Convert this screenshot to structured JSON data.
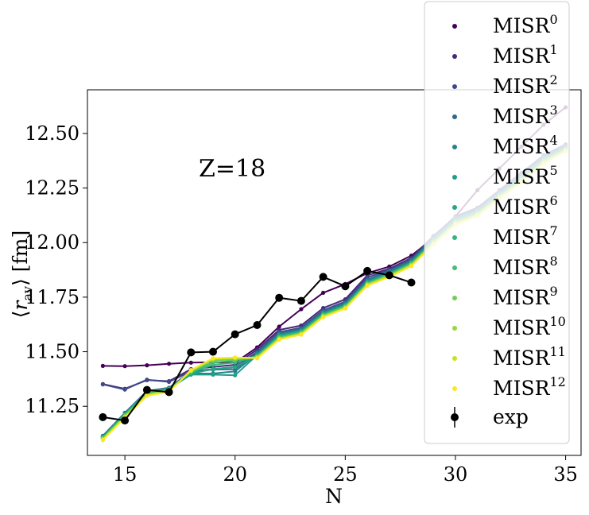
{
  "chart_data": {
    "type": "line",
    "annotation": "Z=18",
    "xlabel": "N",
    "ylabel_symbol": "r",
    "ylabel_subscript": "av",
    "ylabel_unit": "[fm]",
    "xlim": [
      13.3,
      35.7
    ],
    "ylim": [
      11.025,
      12.7
    ],
    "xticks": [
      15,
      20,
      25,
      30,
      35
    ],
    "yticks": [
      11.25,
      11.5,
      11.75,
      12.0,
      12.25,
      12.5
    ],
    "xtick_labels": [
      "15",
      "20",
      "25",
      "30",
      "35"
    ],
    "ytick_labels": [
      "11.25",
      "11.50",
      "11.75",
      "12.00",
      "12.25",
      "12.50"
    ],
    "legend_position": "upper-right",
    "x": [
      14,
      15,
      16,
      17,
      18,
      19,
      20,
      21,
      22,
      23,
      24,
      25,
      26,
      27,
      28,
      29,
      30,
      31,
      32,
      33,
      34,
      35
    ],
    "series": [
      {
        "name": "MISR",
        "sup": "0",
        "color": "#440154",
        "values": [
          11.435,
          11.434,
          11.438,
          11.445,
          11.45,
          11.452,
          11.45,
          11.52,
          11.615,
          11.695,
          11.77,
          11.81,
          11.86,
          11.89,
          11.94,
          12.02,
          12.12,
          12.24,
          12.34,
          12.44,
          12.54,
          12.62
        ]
      },
      {
        "name": "MISR",
        "sup": "1",
        "color": "#482878",
        "values": [
          11.352,
          11.33,
          11.37,
          11.365,
          11.42,
          11.43,
          11.44,
          11.51,
          11.6,
          11.62,
          11.7,
          11.74,
          11.85,
          11.88,
          11.93,
          12.03,
          12.12,
          12.16,
          12.24,
          12.32,
          12.4,
          12.45
        ]
      },
      {
        "name": "MISR",
        "sup": "2",
        "color": "#3e4989",
        "values": [
          11.35,
          11.327,
          11.372,
          11.362,
          11.41,
          11.42,
          11.43,
          11.5,
          11.59,
          11.61,
          11.69,
          11.73,
          11.84,
          11.875,
          11.925,
          12.03,
          12.115,
          12.155,
          12.235,
          12.315,
          12.395,
          12.445
        ]
      },
      {
        "name": "MISR",
        "sup": "3",
        "color": "#31688e",
        "values": [
          11.115,
          11.22,
          11.32,
          11.335,
          11.41,
          11.418,
          11.42,
          11.495,
          11.585,
          11.605,
          11.685,
          11.725,
          11.83,
          11.87,
          11.92,
          12.02,
          12.11,
          12.15,
          12.23,
          12.305,
          12.39,
          12.44
        ]
      },
      {
        "name": "MISR",
        "sup": "4",
        "color": "#26828e",
        "values": [
          11.112,
          11.218,
          11.318,
          11.332,
          11.4,
          11.4,
          11.41,
          11.49,
          11.58,
          11.6,
          11.68,
          11.72,
          11.825,
          11.865,
          11.915,
          12.015,
          12.105,
          12.145,
          12.225,
          12.3,
          12.385,
          12.435
        ]
      },
      {
        "name": "MISR",
        "sup": "5",
        "color": "#1f9e89",
        "values": [
          11.11,
          11.215,
          11.315,
          11.33,
          11.395,
          11.395,
          11.392,
          11.485,
          11.575,
          11.595,
          11.675,
          11.715,
          11.82,
          11.86,
          11.91,
          12.01,
          12.1,
          12.14,
          12.22,
          12.295,
          12.38,
          12.432
        ]
      },
      {
        "name": "MISR",
        "sup": "6",
        "color": "#22a884",
        "values": [
          11.108,
          11.212,
          11.312,
          11.328,
          11.4,
          11.42,
          11.43,
          11.482,
          11.57,
          11.592,
          11.672,
          11.712,
          11.818,
          11.858,
          11.908,
          12.008,
          12.098,
          12.138,
          12.218,
          12.292,
          12.378,
          12.43
        ]
      },
      {
        "name": "MISR",
        "sup": "7",
        "color": "#35b779",
        "values": [
          11.106,
          11.21,
          11.31,
          11.326,
          11.405,
          11.44,
          11.45,
          11.48,
          11.568,
          11.59,
          11.67,
          11.71,
          11.815,
          11.855,
          11.905,
          12.005,
          12.095,
          12.135,
          12.215,
          12.29,
          12.375,
          12.428
        ]
      },
      {
        "name": "MISR",
        "sup": "8",
        "color": "#44bf70",
        "values": [
          11.104,
          11.208,
          11.308,
          11.324,
          11.408,
          11.45,
          11.46,
          11.478,
          11.566,
          11.588,
          11.668,
          11.708,
          11.812,
          11.852,
          11.902,
          12.002,
          12.092,
          12.132,
          12.212,
          12.288,
          12.372,
          12.426
        ]
      },
      {
        "name": "MISR",
        "sup": "9",
        "color": "#6ece58",
        "values": [
          11.102,
          11.205,
          11.305,
          11.322,
          11.41,
          11.46,
          11.465,
          11.476,
          11.563,
          11.585,
          11.665,
          11.705,
          11.81,
          11.85,
          11.9,
          12.0,
          12.09,
          12.13,
          12.21,
          12.285,
          12.37,
          12.424
        ]
      },
      {
        "name": "MISR",
        "sup": "10",
        "color": "#95d840",
        "values": [
          11.1,
          11.203,
          11.303,
          11.32,
          11.412,
          11.465,
          11.47,
          11.474,
          11.56,
          11.582,
          11.662,
          11.702,
          11.808,
          11.848,
          11.898,
          11.998,
          12.088,
          12.128,
          12.208,
          12.282,
          12.368,
          12.422
        ]
      },
      {
        "name": "MISR",
        "sup": "11",
        "color": "#c8e020",
        "values": [
          11.098,
          11.2,
          11.3,
          11.318,
          11.414,
          11.468,
          11.472,
          11.472,
          11.558,
          11.58,
          11.66,
          11.7,
          11.805,
          11.845,
          11.895,
          11.995,
          12.085,
          12.125,
          12.205,
          12.28,
          12.365,
          12.42
        ]
      },
      {
        "name": "MISR",
        "sup": "12",
        "color": "#fde725",
        "values": [
          11.095,
          11.198,
          11.298,
          11.316,
          11.416,
          11.47,
          11.474,
          11.47,
          11.555,
          11.578,
          11.658,
          11.698,
          11.802,
          11.842,
          11.892,
          11.992,
          12.082,
          12.122,
          12.202,
          12.278,
          12.362,
          12.418
        ]
      }
    ],
    "exp": {
      "name": "exp",
      "color": "#000000",
      "x": [
        14,
        15,
        16,
        17,
        18,
        19,
        20,
        21,
        22,
        23,
        24,
        25,
        26,
        27,
        28
      ],
      "values": [
        11.2,
        11.185,
        11.325,
        11.315,
        11.497,
        11.5,
        11.58,
        11.622,
        11.747,
        11.733,
        11.843,
        11.8,
        11.87,
        11.85,
        11.817
      ]
    }
  }
}
